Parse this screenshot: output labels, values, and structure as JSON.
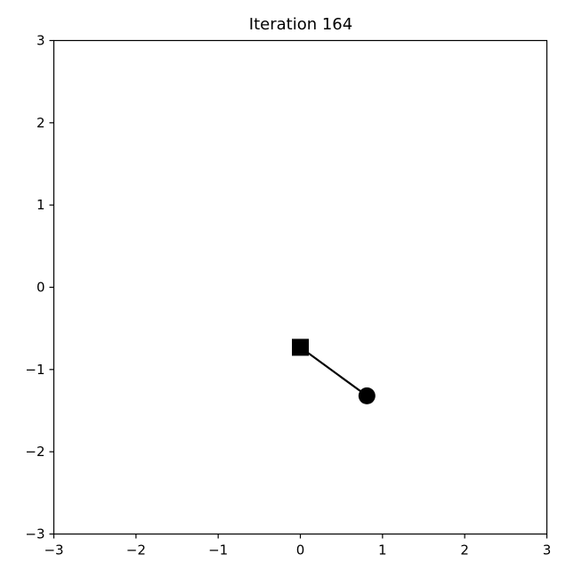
{
  "chart_data": {
    "type": "line",
    "title": "Iteration 164",
    "xlabel": "",
    "ylabel": "",
    "xlim": [
      -3,
      3
    ],
    "ylim": [
      -3,
      3
    ],
    "grid": false,
    "xticks": [
      -3,
      -2,
      -1,
      0,
      1,
      2,
      3
    ],
    "yticks": [
      -3,
      -2,
      -1,
      0,
      1,
      2,
      3
    ],
    "xtick_labels": [
      "−3",
      "−2",
      "−1",
      "0",
      "1",
      "2",
      "3"
    ],
    "ytick_labels": [
      "−3",
      "−2",
      "−1",
      "0",
      "1",
      "2",
      "3"
    ],
    "series": [
      {
        "x": [
          0.0,
          0.81
        ],
        "y": [
          -0.73,
          -1.32
        ],
        "color": "#000000",
        "markers": [
          "square",
          "circle"
        ]
      }
    ]
  }
}
